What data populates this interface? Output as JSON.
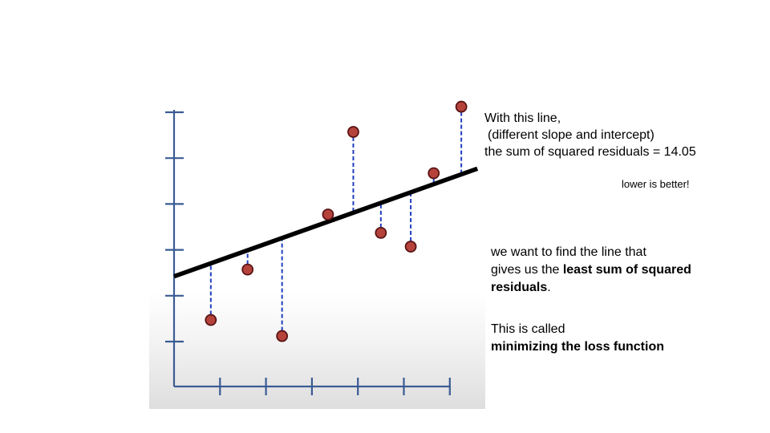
{
  "caption_top": {
    "line1": "With this line,",
    "line2": "(different slope and intercept)",
    "line3": "the sum of squared residuals = 14.05"
  },
  "note": "lower is better!",
  "caption_goal": {
    "line1": "we want to find the line that",
    "line2_prefix": "gives us the ",
    "line2_bold": "least sum of squared",
    "line3_bold": "residuals",
    "line3_suffix": "."
  },
  "caption_loss": {
    "line1": "This is called",
    "line2_bold": "minimizing the loss function"
  },
  "chart_data": {
    "type": "scatter",
    "title": "",
    "xlabel": "",
    "ylabel": "",
    "x_ticks": 6,
    "y_ticks": 6,
    "xlim": [
      0,
      6.5
    ],
    "ylim": [
      0,
      6.5
    ],
    "points": [
      {
        "x": 0.8,
        "y": 1.45
      },
      {
        "x": 1.6,
        "y": 2.55
      },
      {
        "x": 2.35,
        "y": 1.1
      },
      {
        "x": 3.35,
        "y": 3.75
      },
      {
        "x": 3.9,
        "y": 5.55
      },
      {
        "x": 4.5,
        "y": 3.35
      },
      {
        "x": 5.15,
        "y": 3.05
      },
      {
        "x": 5.65,
        "y": 4.65
      },
      {
        "x": 6.25,
        "y": 6.1
      }
    ],
    "fit_line": {
      "x0": 0,
      "y0": 2.4,
      "x1": 6.6,
      "y1": 4.75
    },
    "colors": {
      "axis": "#3b5b94",
      "fit_line": "#000000",
      "residual": "#1f3fbf",
      "point_fill": "#b5433c",
      "point_stroke": "#5a1414"
    }
  }
}
